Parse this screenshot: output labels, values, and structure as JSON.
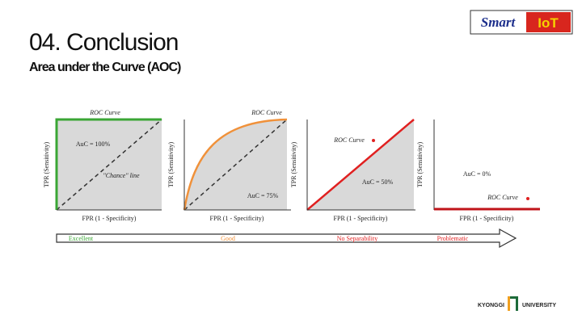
{
  "header": {
    "title": "04. Conclusion",
    "subtitle": "Area under the Curve (AOC)"
  },
  "logo": {
    "left": "Smart",
    "right": "IoT"
  },
  "panels": [
    {
      "roc_label": "ROC Curve",
      "auc_label": "AuC = 100%",
      "chance_label": "\"Chance\" line",
      "y_label": "TPR (Sensitivity)",
      "x_label": "FPR (1 - Specificity)"
    },
    {
      "roc_label": "ROC Curve",
      "auc_label": "AuC = 75%",
      "y_label": "TPR (Sensitivity)",
      "x_label": "FPR (1 - Specificity)"
    },
    {
      "roc_label": "ROC Curve",
      "auc_label": "AuC = 50%",
      "y_label": "TPR (Sensitivity)",
      "x_label": "FPR (1 - Specificity)"
    },
    {
      "roc_label": "ROC Curve",
      "auc_label": "AuC = 0%",
      "y_label": "TPR (Sensitivity)",
      "x_label": "FPR (1 - Specificity)"
    }
  ],
  "arrow_labels": [
    "Excellent",
    "Good",
    "No Separability",
    "Problematic"
  ],
  "footer": {
    "left": "KYONGGI",
    "right": "UNIVERSITY"
  }
}
